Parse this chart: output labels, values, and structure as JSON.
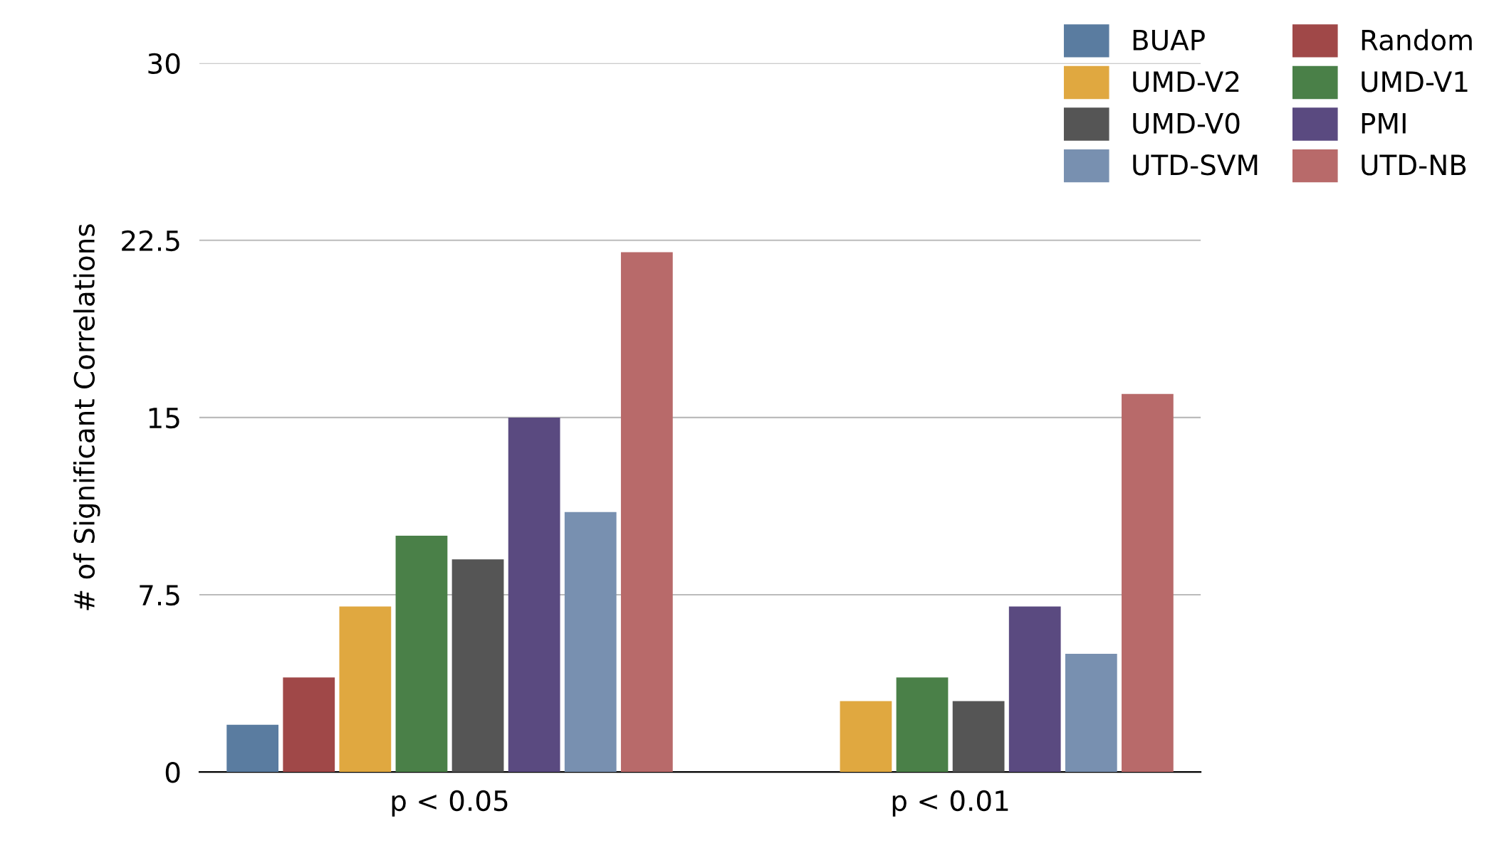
{
  "chart_data": {
    "type": "bar",
    "ylabel": "# of Significant Correlations",
    "categories": [
      "p < 0.05",
      "p < 0.01"
    ],
    "series": [
      {
        "name": "BUAP",
        "color": "#5a7ca0",
        "values": [
          2,
          0
        ]
      },
      {
        "name": "Random",
        "color": "#a04848",
        "values": [
          4,
          0
        ]
      },
      {
        "name": "UMD-V2",
        "color": "#e0a840",
        "values": [
          7,
          3
        ]
      },
      {
        "name": "UMD-V1",
        "color": "#4a8048",
        "values": [
          10,
          4
        ]
      },
      {
        "name": "UMD-V0",
        "color": "#555555",
        "values": [
          9,
          3
        ]
      },
      {
        "name": "PMI",
        "color": "#5a4a80",
        "values": [
          15,
          7
        ]
      },
      {
        "name": "UTD-SVM",
        "color": "#7890b0",
        "values": [
          11,
          5
        ]
      },
      {
        "name": "UTD-NB",
        "color": "#b86a6a",
        "values": [
          22,
          16
        ]
      }
    ],
    "ylim": [
      0,
      30
    ],
    "yticks": [
      0,
      7.5,
      15,
      22.5,
      30
    ],
    "grid": "y",
    "legend": "top right"
  }
}
